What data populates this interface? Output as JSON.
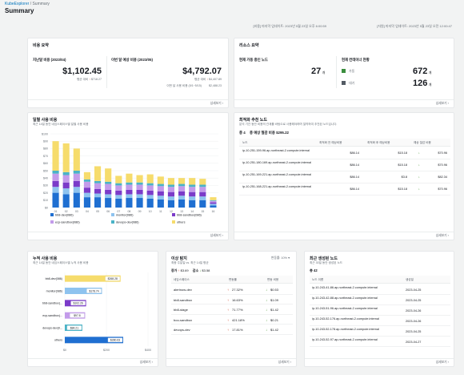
{
  "header": {
    "breadcrumb_root": "KubeExplorer",
    "breadcrumb_sep": "/",
    "breadcrumb_current": "Summary",
    "page_title": "Summary"
  },
  "sections": {
    "top_left_updated": "[비용] 마지막 업데이트: 2023년 5월 23일 오후 6:00:59",
    "top_right_updated": "[자원] 마지막 업데이트: 2023년 5월 23일 오전 12:00:47"
  },
  "cost_summary": {
    "title": "비용 요약",
    "last_month_label": "지난달 비용 (2023/04)",
    "last_month_value": "$1,102.45",
    "last_month_compare_label": "평균 대비",
    "last_month_compare_value": "$718.27",
    "forecast_label": "이번 달 예상 비용 (2023/05)",
    "forecast_value": "$4,792.07",
    "forecast_compare_label": "평균 대비",
    "forecast_compare_value": "$4,407.89",
    "forecast_used_label": "이번 달 사용 비용 (5/1~5/15)",
    "forecast_used_value": "$2,488.23",
    "more": "상세보기"
  },
  "resource_summary": {
    "title": "리소스 요약",
    "nodes_label": "현재 가동 중인 노드",
    "nodes_value": "27",
    "nodes_unit": "개",
    "containers_label": "현재 컨테이너 현황",
    "running_label": "가동",
    "running_value": "672",
    "running_unit": "개",
    "waiting_label": "대기",
    "waiting_value": "126",
    "waiting_unit": "개",
    "running_color": "#3b8e3e",
    "waiting_color": "#545b64",
    "more": "상세보기"
  },
  "daily_cost": {
    "title": "일별 사용 비용",
    "subtitle": "최근 14일 동안 네임스페이스별 일별 사용 비용",
    "more": "상세보기",
    "chart_data": {
      "type": "bar",
      "stacked": true,
      "categories": [
        "01",
        "02",
        "03",
        "04",
        "05",
        "06",
        "07",
        "08",
        "09",
        "10",
        "11",
        "12",
        "13",
        "14",
        "15",
        "16"
      ],
      "ylim": [
        0,
        100
      ],
      "yticks": [
        "$0",
        "$10",
        "$20",
        "$30",
        "$40",
        "$50",
        "$60",
        "$70",
        "$80",
        "$90",
        "$100"
      ],
      "series": [
        {
          "name": "bb8-dev(086)",
          "color": "#1f6fd1",
          "values": [
            20,
            18,
            20,
            14,
            14,
            13,
            12,
            13,
            13,
            12,
            11,
            10,
            11,
            10,
            10,
            3
          ]
        },
        {
          "name": "monitor(086)",
          "color": "#8ec3ef",
          "values": [
            8,
            8,
            8,
            6,
            5,
            5,
            5,
            5,
            5,
            5,
            5,
            5,
            5,
            5,
            5,
            2
          ]
        },
        {
          "name": "bb8-sandbox(086)",
          "color": "#7b3bc9",
          "values": [
            8,
            8,
            8,
            7,
            6,
            6,
            6,
            6,
            6,
            6,
            6,
            6,
            6,
            6,
            6,
            2
          ]
        },
        {
          "name": "ecp-sandbox(086)",
          "color": "#c39bea",
          "values": [
            10,
            10,
            10,
            8,
            8,
            8,
            7,
            7,
            7,
            7,
            7,
            7,
            7,
            7,
            7,
            2
          ]
        },
        {
          "name": "devops-dev(086)",
          "color": "#4ab3c7",
          "values": [
            4,
            4,
            4,
            3,
            3,
            3,
            3,
            3,
            3,
            3,
            3,
            3,
            3,
            3,
            3,
            1
          ]
        },
        {
          "name": "others",
          "color": "#f6dc6c",
          "values": [
            40,
            39,
            30,
            10,
            20,
            18,
            10,
            12,
            10,
            12,
            10,
            9,
            8,
            9,
            8,
            4
          ]
        }
      ],
      "legend_position": "bottom"
    }
  },
  "optimization": {
    "title": "최적화 추천 노드",
    "subtitle": "분석 기간 동안 비용의 관계를 바탕으로 사용해야하며 절약하여 추천된 노드입니다.",
    "count_label": "총 4",
    "saving_label": "총 예상 절감 비용 $295.22",
    "columns": [
      "노드",
      "최적화 전 예상비용",
      "최적화 후 예상비용",
      "예상 절감 비용"
    ],
    "rows": [
      {
        "node": "ip-10-251-159-96.ap-northeast-2.compute.internal",
        "before": "$86.14",
        "after": "$15.18",
        "saving": "$70.96"
      },
      {
        "node": "ip-10-251-180-169.ap-northeast-2.compute.internal",
        "before": "$86.14",
        "after": "$15.18",
        "saving": "$70.96"
      },
      {
        "node": "ip-10-251-169-221.ap-northeast-2.compute.internal",
        "before": "$86.14",
        "after": "$3.8",
        "saving": "$82.34"
      },
      {
        "node": "ip-10-251-168-221.ap-northeast-2.compute.internal",
        "before": "$86.14",
        "after": "$15.18",
        "saving": "$70.96"
      }
    ],
    "more": "상세보기"
  },
  "cumulative": {
    "title": "누적 사용 비용",
    "subtitle": "최근 14일 동안 네임스페이스별 누적 사용 비용",
    "more": "상세보기",
    "chart_data": {
      "type": "bar",
      "orientation": "horizontal",
      "categories": [
        "bb8-dev(086)",
        "monitor(086)",
        "bb8-sandbox(...",
        "ecp-sandbox(...",
        "devops-dev(0...",
        "others"
      ],
      "values": [
        268.28,
        178.74,
        102.26,
        97.8,
        84.21,
        280.63
      ],
      "labels": [
        "$268.28",
        "$178.74",
        "$102.26",
        "$97.8",
        "$84.21",
        "$280.63"
      ],
      "colors": [
        "#f6dc6c",
        "#8ec3ef",
        "#7b3bc9",
        "#c39bea",
        "#4ab3c7",
        "#1f6fd1"
      ],
      "xlim": [
        0,
        400
      ],
      "xticks": [
        "$0",
        "$200",
        "$400"
      ]
    }
  },
  "anomaly": {
    "title": "이상 탐지",
    "subtitle": "최종 주말일 vs. 최근 14일 평균",
    "threshold_label": "변동률: 10% ▾",
    "increase_label": "증가",
    "increase_value": "$3.69",
    "decrease_label": "감소",
    "decrease_value": "$3.58",
    "columns": [
      "네임스페이스",
      "변동률",
      "변동 비용"
    ],
    "rows": [
      {
        "ns": "alertnow-dev",
        "rate": "27.32%",
        "rate_dir": "up",
        "cost": "$0.53",
        "cost_dir": "down"
      },
      {
        "ns": "bb8-sandbox",
        "rate": "16.63%",
        "rate_dir": "up",
        "cost": "$1.09",
        "cost_dir": "down"
      },
      {
        "ns": "bb8-stage",
        "rate": "71.77%",
        "rate_dir": "up",
        "cost": "$1.42",
        "cost_dir": "down"
      },
      {
        "ns": "boo-sandbox",
        "rate": "421.18%",
        "rate_dir": "up",
        "cost": "$0.21",
        "cost_dir": "down"
      },
      {
        "ns": "devops-dev",
        "rate": "17.81%",
        "rate_dir": "up",
        "cost": "$1.42",
        "cost_dir": "down"
      }
    ],
    "more": "상세보기"
  },
  "recent_nodes": {
    "title": "최근 생성된 노드",
    "subtitle": "최근 30일 동안 생성된 노드",
    "count_label": "총 42",
    "columns": [
      "노드 이름",
      "생성일"
    ],
    "rows": [
      {
        "node": "ip-10-243-41-86.ap-northeast-2.compute.internal",
        "date": "2023-04-25"
      },
      {
        "node": "ip-10-243-42-88.ap-northeast-2.compute.internal",
        "date": "2023-04-25"
      },
      {
        "node": "ip-10-243-51-96.ap-northeast-2.compute.internal",
        "date": "2023-04-26"
      },
      {
        "node": "ip-10-243-52-176.ap-northeast-2.compute.internal",
        "date": "2023-04-26"
      },
      {
        "node": "ip-10-243-52-178.ap-northeast-2.compute.internal",
        "date": "2023-04-25"
      },
      {
        "node": "ip-10-243-52-97.ap-northeast-2.compute.internal",
        "date": "2023-04-27"
      }
    ],
    "more": "상세보기"
  }
}
